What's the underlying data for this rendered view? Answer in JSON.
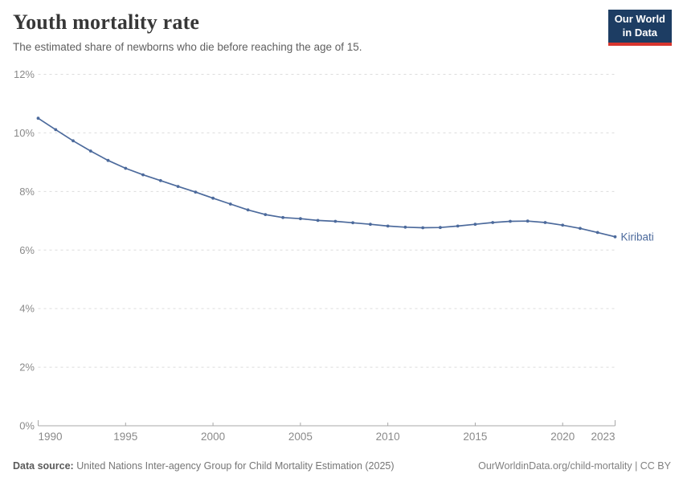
{
  "header": {
    "title": "Youth mortality rate",
    "subtitle": "The estimated share of newborns who die before reaching the age of 15."
  },
  "logo": {
    "line1": "Our World",
    "line2": "in Data"
  },
  "chart_data": {
    "type": "line",
    "title": "Youth mortality rate",
    "x": [
      1990,
      1991,
      1992,
      1993,
      1994,
      1995,
      1996,
      1997,
      1998,
      1999,
      2000,
      2001,
      2002,
      2003,
      2004,
      2005,
      2006,
      2007,
      2008,
      2009,
      2010,
      2011,
      2012,
      2013,
      2014,
      2015,
      2016,
      2017,
      2018,
      2019,
      2020,
      2021,
      2022,
      2023
    ],
    "series": [
      {
        "name": "Kiribati",
        "values": [
          10.5,
          10.11,
          9.73,
          9.38,
          9.06,
          8.79,
          8.57,
          8.37,
          8.17,
          7.98,
          7.77,
          7.57,
          7.37,
          7.21,
          7.11,
          7.07,
          7.01,
          6.98,
          6.93,
          6.88,
          6.82,
          6.78,
          6.76,
          6.77,
          6.82,
          6.88,
          6.94,
          6.98,
          6.99,
          6.94,
          6.85,
          6.74,
          6.6,
          6.45
        ]
      }
    ],
    "xlim": [
      1990,
      2023
    ],
    "ylim": [
      0,
      12
    ],
    "unit": "%",
    "grid": "horizontal-dashed",
    "legend_position": "end-of-line-label",
    "x_ticks": [
      1990,
      1995,
      2000,
      2005,
      2010,
      2015,
      2020,
      2023
    ],
    "y_ticks": [
      {
        "value": 0,
        "label": "0%"
      },
      {
        "value": 2,
        "label": "2%"
      },
      {
        "value": 4,
        "label": "4%"
      },
      {
        "value": 6,
        "label": "6%"
      },
      {
        "value": 8,
        "label": "8%"
      },
      {
        "value": 10,
        "label": "10%"
      },
      {
        "value": 12,
        "label": "12%"
      }
    ]
  },
  "footer": {
    "source_label": "Data source:",
    "source_text": " United Nations Inter-agency Group for Child Mortality Estimation (2025)",
    "right_text": "OurWorldinData.org/child-mortality | CC BY"
  },
  "colors": {
    "line": "#4c6a9c",
    "entity_label": "#4c6a9c",
    "gridline": "#dcdcdc",
    "axis": "#a8a8a8",
    "tick_text": "#8a8a8a",
    "logo_bg": "#1d3d63",
    "logo_accent": "#d8352e"
  }
}
